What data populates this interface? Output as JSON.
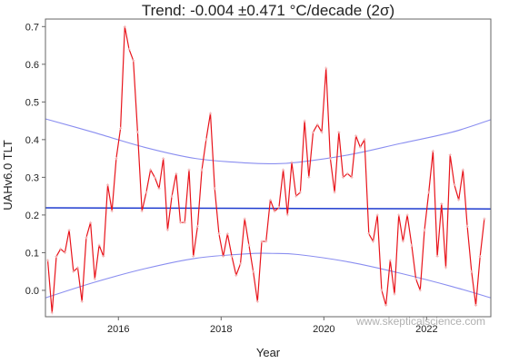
{
  "chart_data": {
    "type": "line",
    "title": "Trend: -0.004 ±0.471 °C/decade (2σ)",
    "xlabel": "Year",
    "ylabel": "UAHv6.0 TLT",
    "xlim": [
      2014.58,
      2023.25
    ],
    "ylim": [
      -0.07,
      0.72
    ],
    "x_ticks": [
      2016,
      2018,
      2020,
      2022
    ],
    "y_ticks": [
      0.0,
      0.1,
      0.2,
      0.3,
      0.4,
      0.5,
      0.6,
      0.7
    ],
    "y_tick_labels": [
      "0.0",
      "0.1",
      "0.2",
      "0.3",
      "0.4",
      "0.5",
      "0.6",
      "0.7"
    ],
    "x_tick_labels": [
      "2016",
      "2018",
      "2020",
      "2022"
    ],
    "grid": false,
    "watermark": "www.skepticalscience.com",
    "colors": {
      "data": "#e8141b",
      "trend": "#1f3ccf",
      "confidence": "#8a8ef0"
    },
    "series": [
      {
        "role": "monthly-anomaly",
        "x_start": 2014.625,
        "x_step": 0.08333,
        "values": [
          0.08,
          -0.06,
          0.09,
          0.11,
          0.1,
          0.16,
          0.05,
          0.06,
          -0.03,
          0.14,
          0.18,
          0.03,
          0.12,
          0.09,
          0.28,
          0.21,
          0.35,
          0.43,
          0.7,
          0.64,
          0.61,
          0.42,
          0.21,
          0.26,
          0.32,
          0.3,
          0.27,
          0.35,
          0.16,
          0.25,
          0.31,
          0.18,
          0.18,
          0.32,
          0.09,
          0.17,
          0.32,
          0.4,
          0.47,
          0.27,
          0.15,
          0.09,
          0.15,
          0.09,
          0.04,
          0.07,
          0.19,
          0.12,
          0.05,
          -0.03,
          0.13,
          0.13,
          0.24,
          0.21,
          0.22,
          0.32,
          0.2,
          0.34,
          0.25,
          0.26,
          0.45,
          0.3,
          0.42,
          0.44,
          0.42,
          0.59,
          0.35,
          0.26,
          0.42,
          0.3,
          0.31,
          0.3,
          0.41,
          0.38,
          0.4,
          0.15,
          0.13,
          0.2,
          0.0,
          -0.04,
          0.08,
          -0.01,
          0.2,
          0.13,
          0.2,
          0.12,
          0.03,
          0.0,
          0.16,
          0.26,
          0.37,
          0.09,
          0.23,
          0.06,
          0.36,
          0.28,
          0.24,
          0.32,
          0.17,
          0.05,
          -0.04,
          0.09,
          0.19
        ]
      },
      {
        "role": "trend-line",
        "x": [
          2014.58,
          2023.25
        ],
        "values": [
          0.219,
          0.216
        ]
      },
      {
        "role": "upper-confidence",
        "x": [
          2014.58,
          2015.5,
          2016.5,
          2017.5,
          2018.5,
          2019.0,
          2019.5,
          2020.5,
          2021.5,
          2022.5,
          2023.25
        ],
        "values": [
          0.455,
          0.42,
          0.38,
          0.35,
          0.338,
          0.336,
          0.34,
          0.36,
          0.39,
          0.42,
          0.453
        ]
      },
      {
        "role": "lower-confidence",
        "x": [
          2014.58,
          2015.5,
          2016.5,
          2017.5,
          2018.5,
          2019.0,
          2019.5,
          2020.5,
          2021.5,
          2022.5,
          2023.25
        ],
        "values": [
          -0.02,
          0.02,
          0.057,
          0.085,
          0.097,
          0.098,
          0.095,
          0.075,
          0.045,
          0.01,
          -0.02
        ]
      }
    ]
  }
}
